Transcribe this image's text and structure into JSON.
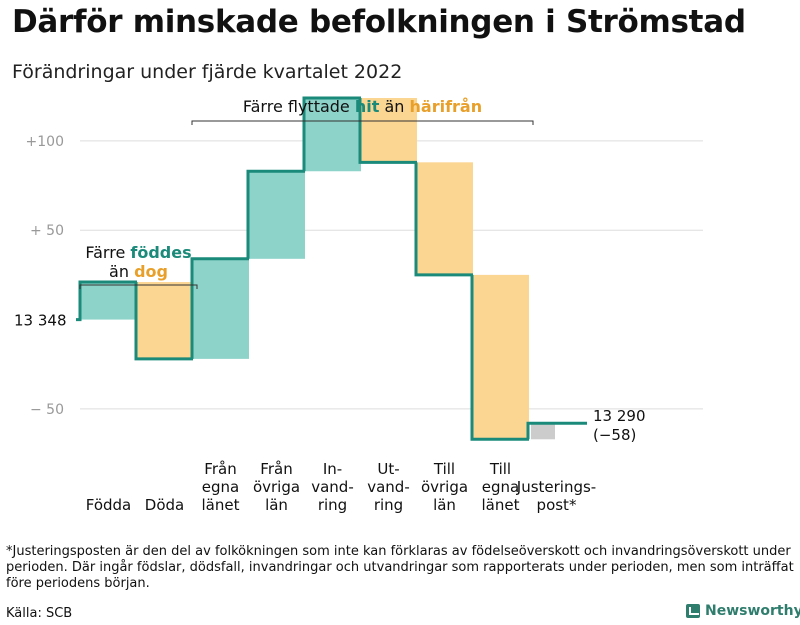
{
  "title": "Därför minskade befolkningen i Strömstad",
  "subtitle": "Förändringar under fjärde kvartalet 2022",
  "footnote": "*Justeringsposten är den del av folkökningen som inte kan förklaras av födelseöverskott och invandringsöverskott under perioden. Där ingår födslar, dödsfall, invandringar och utvandringar som rapporterats under perioden, men som inträffat före periodens början.",
  "source": "Källa: SCB",
  "brand": "Newsworthy",
  "colors": {
    "increase": "#8dd3c9",
    "decrease": "#fbd592",
    "adjustment": "#cccccc",
    "line": "#1a8a7a",
    "hit_text": "#1a8a7a",
    "harifran_text": "#e8a02a",
    "axis_text": "#999999",
    "grid": "#dddddd"
  },
  "chart_data": {
    "type": "waterfall",
    "start_value": 13348,
    "start_label": "13 348",
    "end_value": 13290,
    "end_label": "13 290",
    "end_change_label": "(−58)",
    "ylim": [
      -73,
      124
    ],
    "yticks": [
      {
        "value": 100,
        "label": "+100"
      },
      {
        "value": 50,
        "label": "+ 50"
      },
      {
        "value": -50,
        "label": "− 50"
      }
    ],
    "steps": [
      {
        "category": "Födda",
        "label_lines": [
          "Födda"
        ],
        "change": 21,
        "kind": "increase"
      },
      {
        "category": "Döda",
        "label_lines": [
          "Döda"
        ],
        "change": -43,
        "kind": "decrease"
      },
      {
        "category": "Från egna länet",
        "label_lines": [
          "Från",
          "egna",
          "länet"
        ],
        "change": 56,
        "kind": "increase"
      },
      {
        "category": "Från övriga län",
        "label_lines": [
          "Från",
          "övriga",
          "län"
        ],
        "change": 49,
        "kind": "increase"
      },
      {
        "category": "Invandring",
        "label_lines": [
          "In-",
          "vand-",
          "ring"
        ],
        "change": 41,
        "kind": "increase"
      },
      {
        "category": "Utvandring",
        "label_lines": [
          "Ut-",
          "vand-",
          "ring"
        ],
        "change": -36,
        "kind": "decrease"
      },
      {
        "category": "Till övriga län",
        "label_lines": [
          "Till",
          "övriga",
          "län"
        ],
        "change": -63,
        "kind": "decrease"
      },
      {
        "category": "Till egna länet",
        "label_lines": [
          "Till",
          "egna",
          "länet"
        ],
        "change": -92,
        "kind": "decrease"
      },
      {
        "category": "Justeringspost*",
        "label_lines": [
          "Justerings-",
          "post*"
        ],
        "change": 9,
        "kind": "adjustment"
      }
    ],
    "annotations": [
      {
        "id": "births",
        "covers": [
          0,
          1
        ],
        "parts": [
          {
            "text": "Färre ",
            "color": "default",
            "bold": false
          },
          {
            "text": "föddes",
            "color": "increase",
            "bold": true
          },
          {
            "text": "än ",
            "color": "default",
            "bold": false,
            "newline": true
          },
          {
            "text": "dog",
            "color": "decrease",
            "bold": true
          }
        ]
      },
      {
        "id": "migration",
        "covers": [
          2,
          7
        ],
        "parts": [
          {
            "text": "Färre flyttade ",
            "color": "default",
            "bold": false
          },
          {
            "text": "hit",
            "color": "increase",
            "bold": true
          },
          {
            "text": " än ",
            "color": "default",
            "bold": false
          },
          {
            "text": "härifrån",
            "color": "decrease",
            "bold": true
          }
        ]
      }
    ]
  }
}
